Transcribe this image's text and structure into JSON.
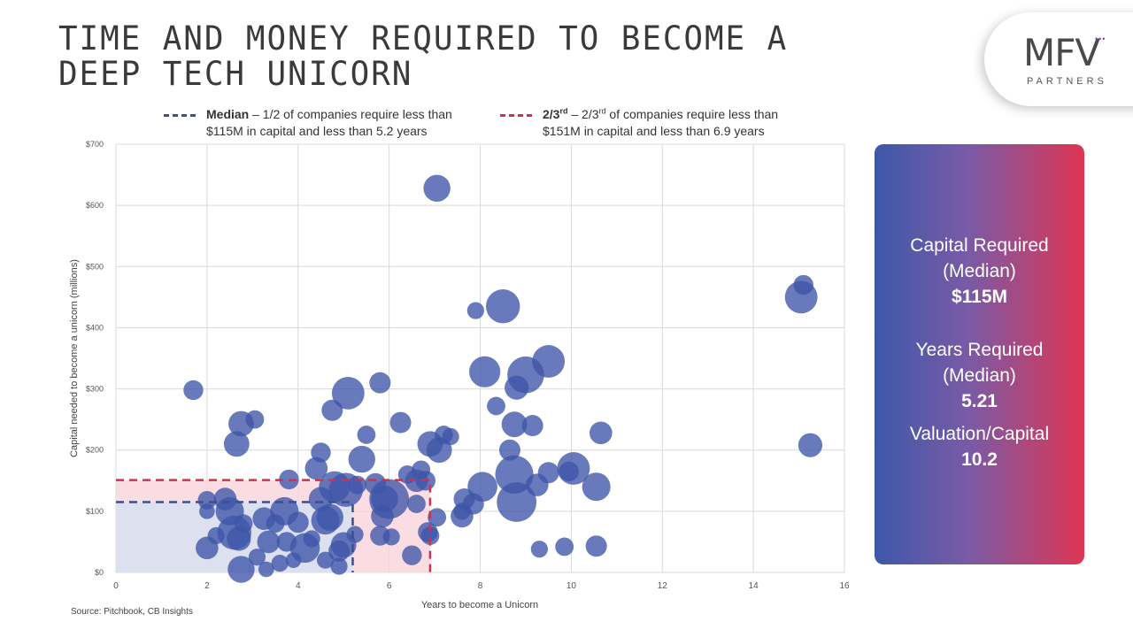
{
  "header": {
    "title_line1": "TIME AND MONEY REQUIRED TO BECOME A",
    "title_line2": "DEEP TECH UNICORN"
  },
  "logo": {
    "main": "MFV",
    "sub": "PARTNERS",
    "dots": "•••"
  },
  "legend": {
    "median": {
      "bold": "Median",
      "line1": " – 1/2 of companies require less than",
      "line2": "$115M in capital and less than 5.2 years",
      "color": "#3b4f8f"
    },
    "two_thirds": {
      "bold_main": "2/3",
      "bold_sup": "rd",
      "mid_main": " – 2/3",
      "mid_sup": "rd",
      "line1_rest": " of companies require less than",
      "line2": "$151M in capital and less than 6.9 years",
      "color": "#c8344f"
    }
  },
  "panel": {
    "capital_label_1": "Capital Required",
    "capital_label_2": "(Median)",
    "capital_value": "$115M",
    "years_label_1": "Years Required",
    "years_label_2": "(Median)",
    "years_value": "5.21",
    "valuation_label": "Valuation/Capital",
    "valuation_value": "10.2"
  },
  "source": "Source: Pitchbook, CB Insights",
  "chart_data": {
    "type": "scatter",
    "xlabel": "Years to become a Unicorn",
    "ylabel": "Capital needed to become a unicorn (millions)",
    "xlim": [
      0,
      16
    ],
    "ylim": [
      0,
      700
    ],
    "x_ticks": [
      "0",
      "2",
      "4",
      "6",
      "8",
      "10",
      "12",
      "14",
      "16"
    ],
    "y_ticks": [
      "$0",
      "$100",
      "$200",
      "$300",
      "$400",
      "$500",
      "$600",
      "$700"
    ],
    "grid": true,
    "point_color": "#3d55a8",
    "median": {
      "x": 5.2,
      "y": 115,
      "color": "#3b4f8f",
      "fill": "#dde0ef"
    },
    "two_thirds": {
      "x": 6.9,
      "y": 151,
      "color": "#c8344f",
      "fill": "#f8d5dc"
    },
    "points": [
      [
        1.7,
        298,
        1.4
      ],
      [
        2.65,
        210,
        1.8
      ],
      [
        2.75,
        243,
        1.8
      ],
      [
        3.05,
        250,
        1.3
      ],
      [
        2.0,
        118,
        1.3
      ],
      [
        2.0,
        100,
        1.1
      ],
      [
        2.2,
        60,
        1.2
      ],
      [
        2.4,
        120,
        1.6
      ],
      [
        2.5,
        100,
        2.0
      ],
      [
        2.6,
        65,
        2.4
      ],
      [
        2.7,
        55,
        1.7
      ],
      [
        2.75,
        5,
        1.9
      ],
      [
        2.0,
        40,
        1.6
      ],
      [
        2.8,
        80,
        1.3
      ],
      [
        3.1,
        25,
        1.2
      ],
      [
        3.25,
        88,
        1.6
      ],
      [
        3.35,
        50,
        1.6
      ],
      [
        3.3,
        5,
        1.1
      ],
      [
        3.5,
        80,
        1.3
      ],
      [
        3.6,
        15,
        1.2
      ],
      [
        3.7,
        100,
        2.0
      ],
      [
        3.75,
        50,
        1.4
      ],
      [
        3.8,
        152,
        1.4
      ],
      [
        3.9,
        20,
        1.1
      ],
      [
        4.0,
        82,
        1.5
      ],
      [
        4.15,
        40,
        2.1
      ],
      [
        4.3,
        55,
        1.2
      ],
      [
        4.4,
        170,
        1.6
      ],
      [
        4.5,
        196,
        1.4
      ],
      [
        4.5,
        120,
        1.7
      ],
      [
        4.6,
        20,
        1.2
      ],
      [
        4.6,
        85,
        2.0
      ],
      [
        4.7,
        90,
        1.9
      ],
      [
        4.75,
        265,
        1.5
      ],
      [
        4.8,
        140,
        2.2
      ],
      [
        4.9,
        10,
        1.2
      ],
      [
        4.9,
        35,
        1.5
      ],
      [
        5.0,
        45,
        1.8
      ],
      [
        5.05,
        135,
        2.4
      ],
      [
        5.1,
        293,
        2.3
      ],
      [
        5.25,
        62,
        1.2
      ],
      [
        5.3,
        143,
        1.3
      ],
      [
        5.4,
        185,
        1.9
      ],
      [
        5.5,
        225,
        1.3
      ],
      [
        5.7,
        145,
        1.5
      ],
      [
        5.8,
        310,
        1.5
      ],
      [
        5.8,
        60,
        1.4
      ],
      [
        5.85,
        92,
        1.6
      ],
      [
        5.9,
        120,
        1.9
      ],
      [
        6.0,
        120,
        2.8
      ],
      [
        6.05,
        58,
        1.2
      ],
      [
        6.25,
        245,
        1.5
      ],
      [
        6.4,
        160,
        1.3
      ],
      [
        6.5,
        28,
        1.4
      ],
      [
        6.6,
        112,
        1.3
      ],
      [
        6.6,
        150,
        1.6
      ],
      [
        6.7,
        168,
        1.3
      ],
      [
        6.8,
        150,
        1.4
      ],
      [
        6.85,
        66,
        1.4
      ],
      [
        6.9,
        60,
        1.3
      ],
      [
        6.9,
        210,
        1.8
      ],
      [
        7.05,
        628,
        1.9
      ],
      [
        7.05,
        90,
        1.3
      ],
      [
        7.1,
        200,
        1.8
      ],
      [
        7.2,
        225,
        1.3
      ],
      [
        7.35,
        222,
        1.2
      ],
      [
        7.6,
        92,
        1.6
      ],
      [
        7.6,
        100,
        1.2
      ],
      [
        7.65,
        120,
        1.5
      ],
      [
        7.85,
        112,
        1.5
      ],
      [
        7.9,
        428,
        1.2
      ],
      [
        8.05,
        140,
        2.1
      ],
      [
        8.1,
        328,
        2.2
      ],
      [
        8.35,
        272,
        1.3
      ],
      [
        8.5,
        435,
        2.4
      ],
      [
        8.65,
        200,
        1.5
      ],
      [
        8.75,
        242,
        1.8
      ],
      [
        8.75,
        160,
        2.7
      ],
      [
        8.8,
        302,
        1.7
      ],
      [
        8.8,
        115,
        2.8
      ],
      [
        9.0,
        323,
        2.6
      ],
      [
        9.15,
        240,
        1.5
      ],
      [
        9.25,
        143,
        1.6
      ],
      [
        9.3,
        38,
        1.2
      ],
      [
        9.5,
        345,
        2.3
      ],
      [
        9.5,
        163,
        1.5
      ],
      [
        9.85,
        42,
        1.3
      ],
      [
        9.95,
        165,
        1.4
      ],
      [
        10.05,
        170,
        2.3
      ],
      [
        10.55,
        140,
        2.0
      ],
      [
        10.55,
        43,
        1.5
      ],
      [
        10.65,
        228,
        1.6
      ],
      [
        15.05,
        450,
        2.3
      ],
      [
        15.1,
        470,
        1.4
      ],
      [
        15.25,
        208,
        1.7
      ]
    ]
  }
}
